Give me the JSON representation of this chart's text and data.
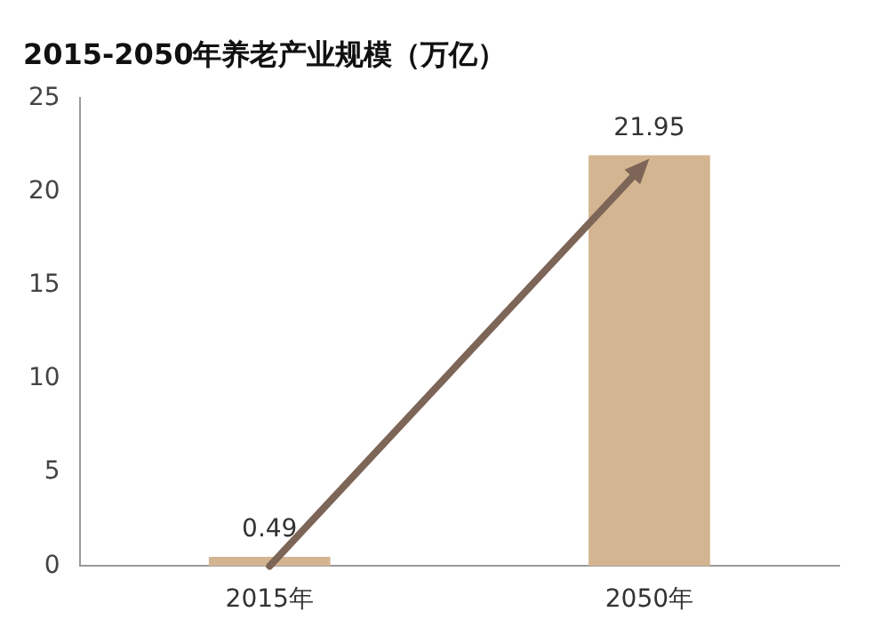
{
  "chart_data": {
    "type": "bar",
    "title": "2015-2050年养老产业规模（万亿）",
    "categories": [
      "2015年",
      "2050年"
    ],
    "values": [
      0.49,
      21.95
    ],
    "color": "#d4b592",
    "ylim": [
      0,
      25
    ],
    "yticks": [
      0,
      5,
      10,
      15,
      20,
      25
    ],
    "grid": false,
    "data_labels": true
  }
}
